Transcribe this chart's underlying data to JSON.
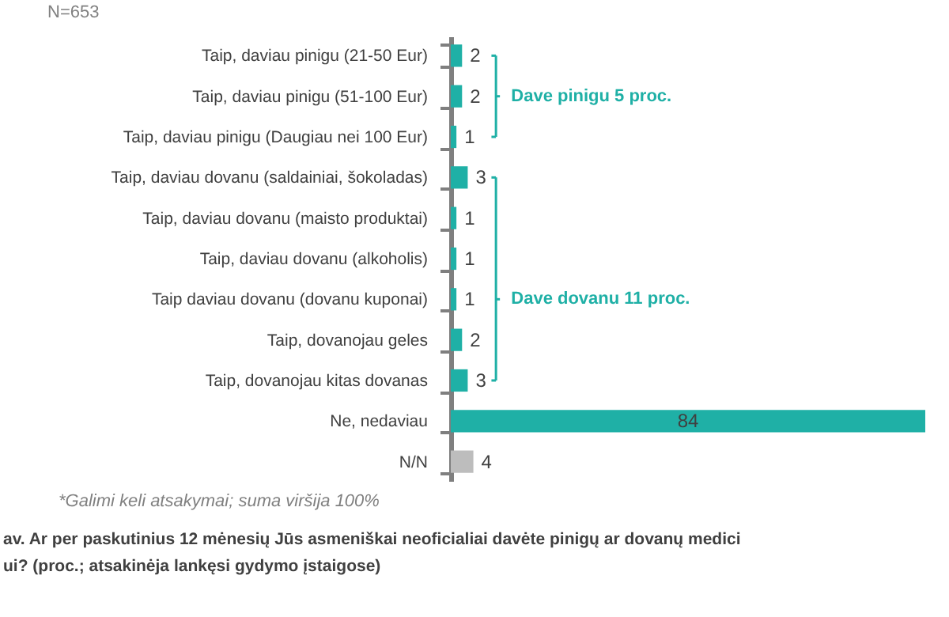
{
  "chart_data": {
    "type": "bar",
    "orientation": "horizontal",
    "data_labels": true,
    "tick_labels": "y",
    "categories": [
      "Taip, daviau pinigu (21-50 Eur)",
      "Taip, daviau pinigu (51-100 Eur)",
      "Taip, daviau pinigu (Daugiau nei 100 Eur)",
      "Taip, daviau dovanu (saldainiai, šokoladas)",
      "Taip, daviau dovanu (maisto produktai)",
      "Taip, daviau dovanu (alkoholis)",
      "Taip daviau dovanu (dovanu kuponai)",
      "Taip, dovanojau geles",
      "Taip, dovanojau kitas dovanas",
      "Ne, nedaviau",
      "N/N"
    ],
    "values": [
      2,
      2,
      1,
      3,
      1,
      1,
      1,
      2,
      3,
      84,
      4
    ],
    "colors": [
      "#1fb0a6",
      "#1fb0a6",
      "#1fb0a6",
      "#1fb0a6",
      "#1fb0a6",
      "#1fb0a6",
      "#1fb0a6",
      "#1fb0a6",
      "#1fb0a6",
      "#1fb0a6",
      "#bdbdbd"
    ],
    "annotations": [
      "N=653",
      "Dave pinigu 5 proc.",
      "Dave dovanu 11 proc.",
      "*Galimi keli atsakymai; suma viršija 100%",
      "av. Ar per paskutinius 12 mėnesių Jūs asmeniškai neoficialiai davėte pinigų ar dovanų medici",
      "ui? (proc.; atsakinėja lankęsi gydymo įstaigose)"
    ]
  }
}
